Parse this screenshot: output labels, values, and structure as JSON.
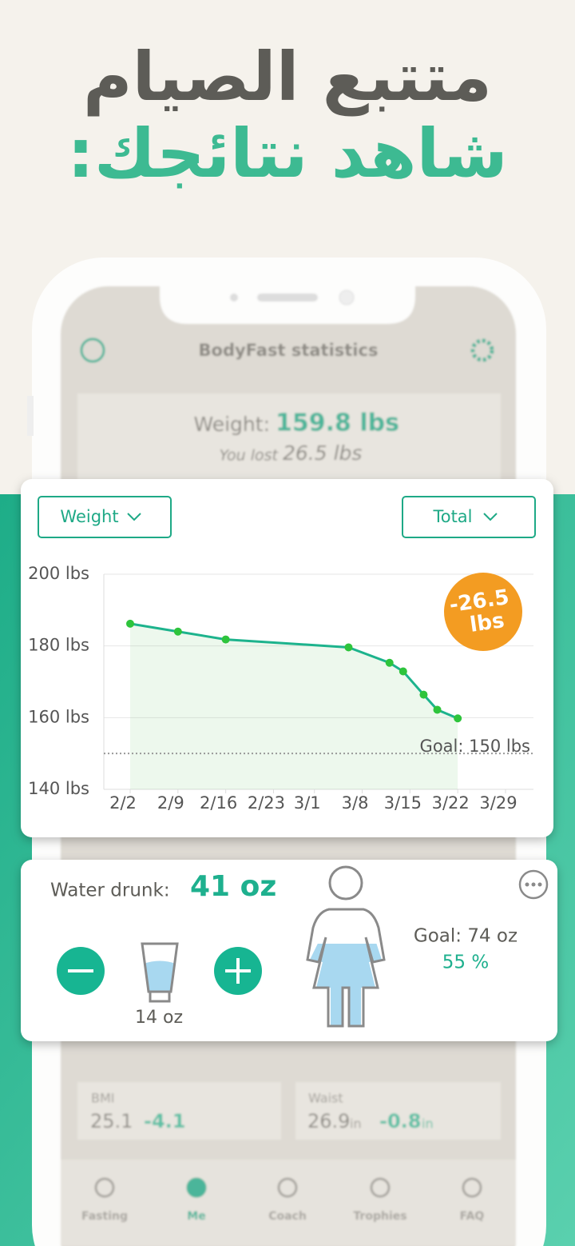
{
  "header": {
    "title": "متتبع الصيام",
    "subtitle": "شاهد نتائجك:"
  },
  "phone": {
    "screen_title": "BodyFast statistics",
    "weight_label": "Weight:",
    "weight_value": "159.8 lbs",
    "lost_label": "You lost",
    "lost_value": "26.5 lbs",
    "bmi_label": "BMI",
    "bmi_value": "25.1",
    "bmi_change": "-4.1",
    "waist_label": "Waist",
    "waist_value": "26.9",
    "waist_unit": "in",
    "waist_change": "-0.8",
    "waist_change_unit": "in",
    "nav": [
      "Fasting",
      "Me",
      "Coach",
      "Trophies",
      "FAQ"
    ]
  },
  "dropdowns": [
    "Weight",
    "Total"
  ],
  "chart_data": {
    "type": "line",
    "color": "#1db38d",
    "point_color": "#2ec43c",
    "x": [
      "2/2",
      "2/9",
      "2/16",
      "3/6",
      "3/12",
      "3/14",
      "3/17",
      "3/19",
      "3/22"
    ],
    "values": [
      186.2,
      184.0,
      181.8,
      179.6,
      175.3,
      172.9,
      166.4,
      162.2,
      159.8
    ],
    "xticks": [
      "2/2",
      "2/9",
      "2/16",
      "2/23",
      "3/1",
      "3/8",
      "3/15",
      "3/22",
      "3/29"
    ],
    "ylim": [
      140,
      200
    ],
    "yticks": [
      {
        "value": 140,
        "label": "140 lbs"
      },
      {
        "value": 160,
        "label": "160 lbs"
      },
      {
        "value": 180,
        "label": "180 lbs"
      },
      {
        "value": 200,
        "label": "200 lbs"
      }
    ],
    "grid": true,
    "goal": {
      "value": 150,
      "label": "Goal: 150 lbs"
    },
    "annotation": [
      "-26.5",
      "lbs"
    ]
  },
  "water": {
    "label": "Water drunk:",
    "value": "41 oz",
    "glass": "14 oz",
    "goal": "Goal: 74 oz",
    "percent": "55 %"
  }
}
